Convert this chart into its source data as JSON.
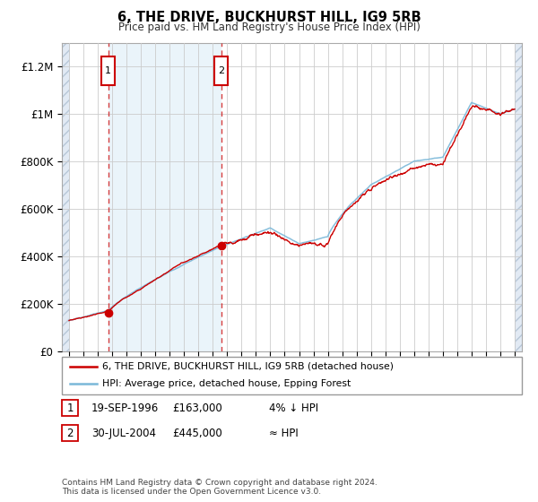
{
  "title": "6, THE DRIVE, BUCKHURST HILL, IG9 5RB",
  "subtitle": "Price paid vs. HM Land Registry's House Price Index (HPI)",
  "ylabel_ticks": [
    "£0",
    "£200K",
    "£400K",
    "£600K",
    "£800K",
    "£1M",
    "£1.2M"
  ],
  "ytick_values": [
    0,
    200000,
    400000,
    600000,
    800000,
    1000000,
    1200000
  ],
  "ylim": [
    0,
    1300000
  ],
  "xlim_start": 1993.5,
  "xlim_end": 2025.5,
  "hpi_color": "#7ab8d9",
  "price_color": "#cc0000",
  "sale1_date": 1996.72,
  "sale1_price": 163000,
  "sale2_date": 2004.58,
  "sale2_price": 445000,
  "legend1_label": "6, THE DRIVE, BUCKHURST HILL, IG9 5RB (detached house)",
  "legend2_label": "HPI: Average price, detached house, Epping Forest",
  "annotation1_date": "19-SEP-1996",
  "annotation1_price": "£163,000",
  "annotation1_note": "4% ↓ HPI",
  "annotation1_num": "1",
  "annotation2_date": "30-JUL-2004",
  "annotation2_price": "£445,000",
  "annotation2_note": "≈ HPI",
  "annotation2_num": "2",
  "footer": "Contains HM Land Registry data © Crown copyright and database right 2024.\nThis data is licensed under the Open Government Licence v3.0.",
  "bg_color": "#ffffff",
  "grid_color": "#cccccc",
  "shade_between_color": "#ddeef8"
}
